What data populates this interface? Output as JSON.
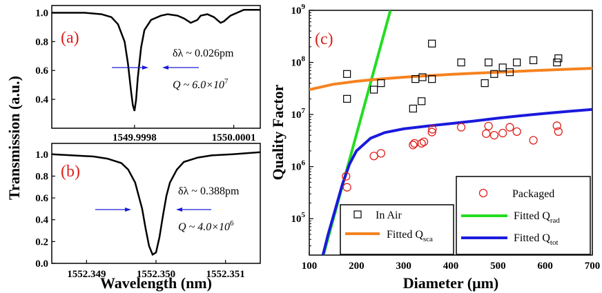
{
  "chart_data": [
    {
      "id": "a",
      "type": "line",
      "panel_label": "(a)",
      "ylabel": "Transmission (a.u.)",
      "ylim": [
        0.2,
        1.05
      ],
      "yticks": [
        "0.4",
        "0.6",
        "0.8",
        "1.0"
      ],
      "xlim": [
        1549.99955,
        1550.00018
      ],
      "xticks": [
        "1549.9998",
        "1550.0001"
      ],
      "annotation_linewidth": "δλ ~ 0.026pm",
      "annotation_q": "Q ~ 6.0×10",
      "annotation_q_exp": "7",
      "series": [
        {
          "x": [
            1549.99955,
            1549.9996,
            1549.99965,
            1549.9997,
            1549.99973,
            1549.99975,
            1549.99977,
            1549.99978,
            1549.99979,
            1549.999795,
            1549.9998,
            1549.999805,
            1549.99981,
            1549.99982,
            1549.99983,
            1549.99985,
            1549.99988,
            1549.9999,
            1549.99993,
            1549.99995,
            1549.99997,
            1549.99999,
            1550.0,
            1550.00002,
            1550.00004,
            1550.00006,
            1550.00007,
            1550.00009,
            1550.00011,
            1550.00013,
            1550.00015,
            1550.00018
          ],
          "values": [
            1.0,
            1.0,
            1.0,
            0.99,
            0.97,
            0.92,
            0.8,
            0.65,
            0.45,
            0.36,
            0.32,
            0.4,
            0.55,
            0.76,
            0.88,
            0.95,
            0.98,
            0.99,
            0.98,
            0.96,
            0.93,
            0.95,
            0.98,
            0.99,
            0.97,
            0.93,
            0.94,
            0.98,
            1.0,
            1.02,
            1.02,
            1.02
          ]
        }
      ]
    },
    {
      "id": "b",
      "type": "line",
      "panel_label": "(b)",
      "xlabel": "Wavelength (nm)",
      "ylim": [
        0.0,
        1.1
      ],
      "yticks": [
        "0.0",
        "0.2",
        "0.4",
        "0.6",
        "0.8",
        "1.0"
      ],
      "xlim": [
        1552.3485,
        1552.3515
      ],
      "xticks": [
        "1552.349",
        "1552.350",
        "1552.351"
      ],
      "annotation_linewidth": "δλ ~ 0.388pm",
      "annotation_q": "Q ~ 4.0×10",
      "annotation_q_exp": "6",
      "series": [
        {
          "x": [
            1552.3485,
            1552.3488,
            1552.3491,
            1552.3493,
            1552.3495,
            1552.3496,
            1552.3497,
            1552.3498,
            1552.34985,
            1552.3499,
            1552.34995,
            1552.35,
            1552.35005,
            1552.3501,
            1552.35015,
            1552.3502,
            1552.3503,
            1552.3504,
            1552.3506,
            1552.3508,
            1552.3511,
            1552.3515
          ],
          "values": [
            1.0,
            0.99,
            0.98,
            0.96,
            0.92,
            0.86,
            0.74,
            0.5,
            0.32,
            0.16,
            0.08,
            0.1,
            0.24,
            0.44,
            0.62,
            0.74,
            0.86,
            0.93,
            0.97,
            0.99,
            1.0,
            1.02
          ]
        }
      ]
    },
    {
      "id": "c",
      "type": "scatter",
      "panel_label": "(c)",
      "xlabel": "Diameter (μm)",
      "ylabel": "Quality Factor",
      "xlim": [
        100,
        700
      ],
      "ylim": [
        20000,
        1000000000
      ],
      "yscale": "log",
      "xticks": [
        "100",
        "200",
        "300",
        "400",
        "500",
        "600",
        "700"
      ],
      "series": [
        {
          "name": "In Air",
          "marker": "square",
          "color": "#000000",
          "x": [
            180,
            180,
            237,
            252,
            320,
            325,
            338,
            340,
            360,
            360,
            422,
            472,
            480,
            492,
            510,
            525,
            540,
            575,
            625,
            628
          ],
          "values": [
            60000000,
            20000000,
            30000000,
            40000000,
            13000000,
            48000000,
            18000000,
            52000000,
            230000000,
            48000000,
            100000000,
            40000000,
            100000000,
            60000000,
            80000000,
            65000000,
            100000000,
            110000000,
            100000000,
            120000000
          ]
        },
        {
          "name": "Packaged",
          "marker": "circle",
          "color": "#e0201b",
          "x": [
            178,
            180,
            237,
            252,
            320,
            323,
            338,
            343,
            360,
            361,
            422,
            475,
            480,
            492,
            510,
            525,
            540,
            575,
            625,
            628
          ],
          "values": [
            650000,
            400000,
            1600000,
            1800000,
            2600000,
            2800000,
            2800000,
            3000000,
            4600000,
            5200000,
            5700000,
            4300000,
            6000000,
            4000000,
            4400000,
            5700000,
            4700000,
            3200000,
            6100000,
            4700000
          ]
        }
      ],
      "fits": [
        {
          "name": "Fitted Q",
          "sub": "rad",
          "color": "#22dd22",
          "x": [
            130,
            272
          ],
          "values": [
            20000,
            1000000000
          ]
        },
        {
          "name": "Fitted Q",
          "sub": "sca",
          "color": "#f5821f",
          "x": [
            100,
            150,
            200,
            250,
            300,
            350,
            400,
            450,
            500,
            550,
            600,
            650,
            700
          ],
          "values": [
            30000000,
            38000000,
            43500000,
            48000000,
            52000000,
            55500000,
            59000000,
            62000000,
            65000000,
            68000000,
            71000000,
            74000000,
            77000000
          ]
        },
        {
          "name": "Fitted Q",
          "sub": "tot",
          "color": "#1a1adc",
          "x": [
            129,
            140,
            155,
            170,
            185,
            200,
            230,
            260,
            300,
            350,
            400,
            450,
            500,
            550,
            600,
            650,
            700
          ],
          "values": [
            20000,
            50000,
            150000,
            450000,
            1100000,
            2000000,
            3500000,
            4500000,
            5300000,
            6000000,
            6700000,
            7500000,
            8500000,
            9500000,
            10500000,
            11500000,
            12500000
          ]
        }
      ],
      "legend": {
        "left_box": [
          "In Air",
          "Fitted Q"
        ],
        "left_box_sub": [
          "",
          "sca"
        ],
        "right_box": [
          "Packaged",
          "Fitted Q",
          "Fitted Q"
        ],
        "right_box_sub": [
          "",
          "rad",
          "tot"
        ]
      }
    }
  ]
}
